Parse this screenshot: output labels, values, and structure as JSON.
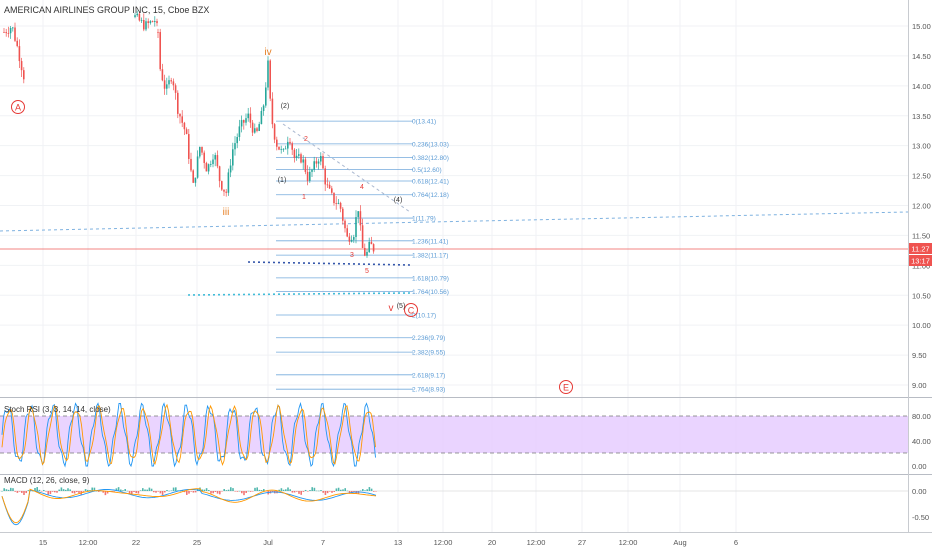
{
  "title": "AMERICAN AIRLINES GROUP INC, 15, Cboe BZX",
  "price_axis": {
    "ticks": [
      "15.00",
      "14.50",
      "14.00",
      "13.50",
      "13.00",
      "12.50",
      "12.00",
      "11.50",
      "11.00",
      "10.50",
      "10.00",
      "9.50",
      "9.00"
    ],
    "current_price": "11.27",
    "countdown": "13:17",
    "up_color": "#26a69a",
    "down_color": "#ef5350"
  },
  "time_axis": {
    "labels": [
      "15",
      "12:00",
      "22",
      "25",
      "Jul",
      "7",
      "13",
      "12:00",
      "20",
      "12:00",
      "27",
      "12:00",
      "Aug",
      "6"
    ]
  },
  "fib_levels": [
    {
      "label": "0(13.41)",
      "price": 13.41
    },
    {
      "label": "0.236(13.03)",
      "price": 13.03
    },
    {
      "label": "0.382(12.80)",
      "price": 12.8
    },
    {
      "label": "0.5(12.60)",
      "price": 12.6
    },
    {
      "label": "0.618(12.41)",
      "price": 12.41
    },
    {
      "label": "0.764(12.18)",
      "price": 12.18
    },
    {
      "label": "1(11.79)",
      "price": 11.79
    },
    {
      "label": "1.236(11.41)",
      "price": 11.41
    },
    {
      "label": "1.382(11.17)",
      "price": 11.17
    },
    {
      "label": "1.618(10.79)",
      "price": 10.79
    },
    {
      "label": "1.764(10.56)",
      "price": 10.56
    },
    {
      "label": "2(10.17)",
      "price": 10.17
    },
    {
      "label": "2.236(9.79)",
      "price": 9.79
    },
    {
      "label": "2.382(9.55)",
      "price": 9.55
    },
    {
      "label": "2.618(9.17)",
      "price": 9.17
    },
    {
      "label": "2.764(8.93)",
      "price": 8.93
    }
  ],
  "wave_labels": {
    "A": "A",
    "C": "C",
    "E": "E",
    "iv": "iv",
    "iii": "iii",
    "v": "v",
    "w2": "(2)",
    "w1": "(1)",
    "w4": "(4)",
    "w5": "(5)",
    "n2": "2",
    "n1": "1",
    "n4": "4",
    "n3": "3",
    "n5": "5"
  },
  "stoch": {
    "label": "Stoch RSI (3, 3, 14, 14, close)",
    "ticks": [
      "80.00",
      "40.00",
      "0.00"
    ],
    "band_color": "#e6ccff"
  },
  "macd": {
    "label": "MACD (12, 26, close, 9)",
    "ticks": [
      "0.00",
      "-0.50"
    ]
  },
  "chart_data": {
    "type": "candlestick",
    "title": "AMERICAN AIRLINES GROUP INC, 15, Cboe BZX",
    "ylim": [
      8.75,
      15.3
    ],
    "last_price": 11.27,
    "swing_points": [
      {
        "label": "A",
        "price": 14.5
      },
      {
        "label": "iii",
        "price": 12.1
      },
      {
        "label": "iv",
        "price": 14.3
      },
      {
        "label": "v",
        "price": 11.15
      }
    ],
    "fib_retracement": {
      "start": 13.41,
      "end": 11.79,
      "levels": [
        13.41,
        13.03,
        12.8,
        12.6,
        12.41,
        12.18,
        11.79,
        11.41,
        11.17,
        10.79,
        10.56,
        10.17,
        9.79,
        9.55,
        9.17,
        8.93
      ]
    },
    "stoch_rsi": {
      "upper": 80,
      "lower": 20,
      "range": [
        0,
        100
      ]
    },
    "macd": {
      "range": [
        -0.8,
        0.3
      ]
    }
  }
}
